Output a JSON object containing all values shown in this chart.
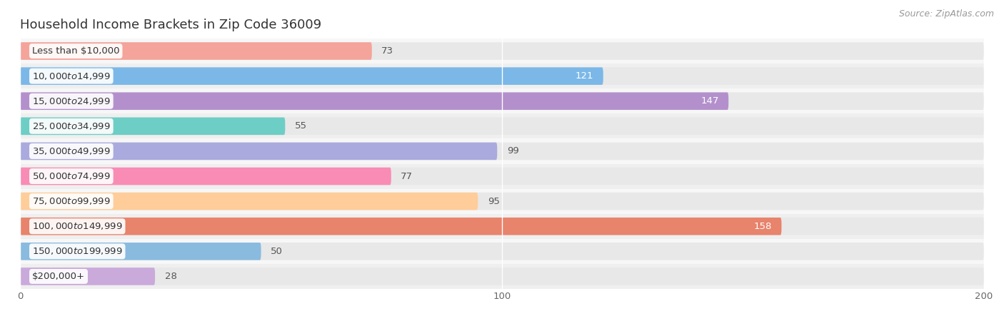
{
  "title": "Household Income Brackets in Zip Code 36009",
  "source": "Source: ZipAtlas.com",
  "categories": [
    "Less than $10,000",
    "$10,000 to $14,999",
    "$15,000 to $24,999",
    "$25,000 to $34,999",
    "$35,000 to $49,999",
    "$50,000 to $74,999",
    "$75,000 to $99,999",
    "$100,000 to $149,999",
    "$150,000 to $199,999",
    "$200,000+"
  ],
  "values": [
    73,
    121,
    147,
    55,
    99,
    77,
    95,
    158,
    50,
    28
  ],
  "bar_colors": [
    "#F4A49A",
    "#7BB8E8",
    "#B390CC",
    "#6DCEC5",
    "#AAAADE",
    "#F88CB5",
    "#FFCD9A",
    "#E8836C",
    "#89BBDF",
    "#C9AADB"
  ],
  "bar_bg_color": "#E8E8E8",
  "row_bg_even": "#F7F7F7",
  "row_bg_odd": "#EFEFEF",
  "fig_bg": "#FFFFFF",
  "xlim_max": 200,
  "xticks": [
    0,
    100,
    200
  ],
  "bar_height": 0.7,
  "title_fontsize": 13,
  "label_fontsize": 9.5,
  "value_fontsize": 9.5,
  "source_fontsize": 9
}
